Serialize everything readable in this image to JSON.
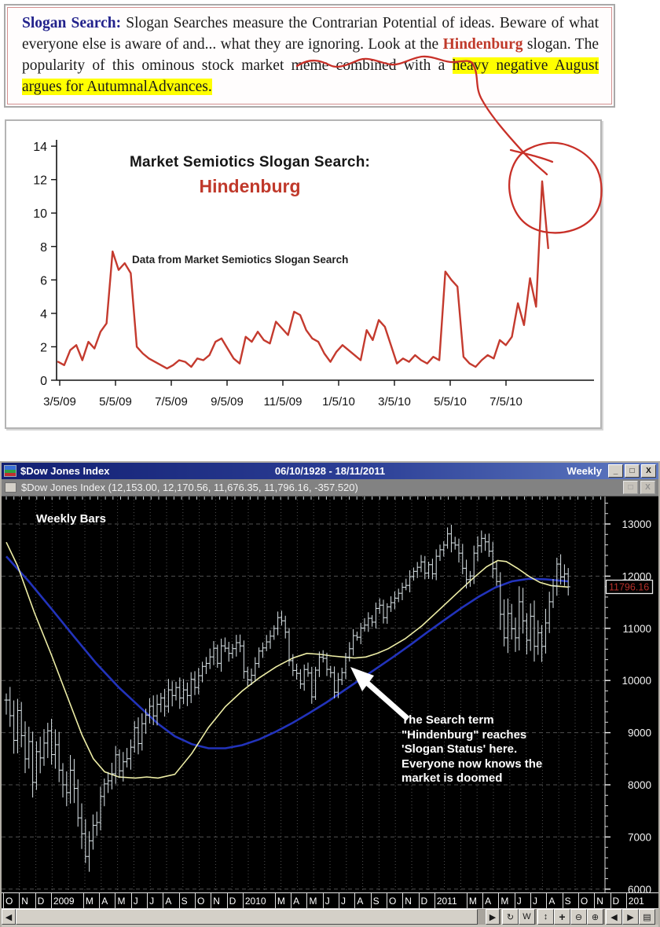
{
  "note_panel": {
    "segments": [
      {
        "text": "Slogan Search:",
        "style": "title"
      },
      {
        "text": " Slogan Searches measure the Contrarian Potential of ideas. Beware of what everyone else is aware of and... what they are ignoring. Look at the ",
        "style": "plain"
      },
      {
        "text": "Hindenburg",
        "style": "red"
      },
      {
        "text": " slogan. The popularity of this ominous stock market meme combined with a ",
        "style": "plain"
      },
      {
        "text": "heavy negative August argues for AutumnalAdvances.",
        "style": "highlight"
      }
    ]
  },
  "chart_data": [
    {
      "type": "line",
      "title": "Market Semiotics Slogan Search:",
      "subtitle": "Hindenburg",
      "note": "Data from Market Semiotics Slogan Search",
      "x_tick_labels": [
        "3/5/09",
        "5/5/09",
        "7/5/09",
        "9/5/09",
        "11/5/09",
        "1/5/10",
        "3/5/10",
        "5/5/10",
        "7/5/10"
      ],
      "y_ticks": [
        0,
        2,
        4,
        6,
        8,
        10,
        12,
        14
      ],
      "ylim": [
        0,
        14
      ],
      "grid": false,
      "line_color": "#c43a2e",
      "values": [
        1.1,
        0.9,
        1.8,
        2.1,
        1.2,
        2.3,
        1.9,
        2.9,
        3.4,
        7.7,
        6.6,
        7.0,
        6.4,
        2.0,
        1.6,
        1.3,
        1.1,
        0.9,
        0.7,
        0.9,
        1.2,
        1.1,
        0.8,
        1.3,
        1.2,
        1.5,
        2.3,
        2.5,
        1.9,
        1.3,
        1.0,
        2.6,
        2.3,
        2.9,
        2.4,
        2.2,
        3.5,
        3.1,
        2.7,
        4.1,
        3.9,
        3.0,
        2.5,
        2.3,
        1.6,
        1.1,
        1.7,
        2.1,
        1.8,
        1.5,
        1.2,
        3.0,
        2.4,
        3.6,
        3.2,
        2.1,
        1.0,
        1.3,
        1.1,
        1.5,
        1.2,
        1.0,
        1.4,
        1.2,
        6.5,
        6.0,
        5.6,
        1.4,
        1.0,
        0.8,
        1.2,
        1.5,
        1.3,
        2.4,
        2.1,
        2.6,
        4.6,
        3.3,
        6.1,
        4.4,
        11.9,
        7.9
      ],
      "annotation": "hand-drawn red circle around final spike linked by a red line to the highlighted text above"
    },
    {
      "type": "ohlc-bar",
      "symbol": "$Dow Jones Index",
      "period": "Weekly",
      "corner_label": "Weekly Bars",
      "y_ticks": [
        6000,
        7000,
        8000,
        9000,
        10000,
        11000,
        12000,
        13000
      ],
      "ylim": [
        5900,
        13500
      ],
      "last_price": "11796.16",
      "bar_color": "#dce6ea",
      "weekly_closes": [
        9625,
        9325,
        8852,
        9425,
        8943,
        8497,
        8829,
        8046,
        8635,
        8515,
        8800,
        9035,
        8579,
        8769,
        8281,
        8000,
        7850,
        8280,
        7932,
        7366,
        7062,
        6626,
        6927,
        7224,
        7278,
        7776,
        8017,
        8076,
        8212,
        8575,
        8268,
        8441,
        8500,
        8721,
        9093,
        8790,
        9172,
        9337,
        9506,
        9321,
        9544,
        9665,
        9506,
        9820,
        9712,
        9865,
        9665,
        9820,
        9712,
        10023,
        9865,
        10092,
        10270,
        10328,
        10452,
        10618,
        10329,
        10664,
        10619,
        10520,
        10610,
        10725,
        10663,
        10172,
        10012,
        10099,
        10325,
        10564,
        10624,
        10740,
        10850,
        10997,
        11205,
        11144,
        10927,
        10380,
        10193,
        10136,
        9932,
        10211,
        10143,
        9686,
        10198,
        10447,
        10424,
        10213,
        10150,
        9774,
        10015,
        10151,
        10448,
        10608,
        10860,
        10829,
        11006,
        11062,
        11192,
        11118,
        11382,
        11444,
        11204,
        11410,
        11492,
        11578,
        11672,
        11787,
        11823,
        11990,
        12092,
        12170,
        12273,
        12058,
        12220,
        12044,
        12381,
        12505,
        12595,
        12810,
        12638,
        12596,
        12441,
        12151,
        11934,
        12004,
        12441,
        12582,
        12724,
        12657,
        12479,
        12143,
        11897,
        11269,
        10818,
        11284,
        10992,
        10818,
        11509,
        11143,
        10772,
        11232,
        10655,
        10913,
        10655,
        11103,
        11509,
        11809,
        12231,
        11983,
        12042,
        11796
      ],
      "ma_fast": {
        "name": "moving-average-fast",
        "color": "#eeeea6",
        "points": [
          [
            0,
            12650
          ],
          [
            0.02,
            12200
          ],
          [
            0.05,
            11300
          ],
          [
            0.08,
            10500
          ],
          [
            0.11,
            9650
          ],
          [
            0.135,
            8950
          ],
          [
            0.155,
            8500
          ],
          [
            0.175,
            8250
          ],
          [
            0.2,
            8150
          ],
          [
            0.23,
            8130
          ],
          [
            0.25,
            8150
          ],
          [
            0.27,
            8130
          ],
          [
            0.3,
            8200
          ],
          [
            0.33,
            8600
          ],
          [
            0.36,
            9100
          ],
          [
            0.39,
            9500
          ],
          [
            0.42,
            9800
          ],
          [
            0.45,
            10050
          ],
          [
            0.48,
            10260
          ],
          [
            0.51,
            10430
          ],
          [
            0.535,
            10520
          ],
          [
            0.56,
            10500
          ],
          [
            0.58,
            10470
          ],
          [
            0.6,
            10450
          ],
          [
            0.62,
            10430
          ],
          [
            0.64,
            10450
          ],
          [
            0.66,
            10520
          ],
          [
            0.68,
            10610
          ],
          [
            0.71,
            10800
          ],
          [
            0.74,
            11050
          ],
          [
            0.77,
            11350
          ],
          [
            0.8,
            11650
          ],
          [
            0.83,
            11950
          ],
          [
            0.855,
            12180
          ],
          [
            0.875,
            12300
          ],
          [
            0.89,
            12280
          ],
          [
            0.91,
            12150
          ],
          [
            0.93,
            12000
          ],
          [
            0.95,
            11880
          ],
          [
            0.97,
            11820
          ],
          [
            1,
            11790
          ]
        ]
      },
      "ma_slow": {
        "name": "moving-average-slow",
        "color": "#2233bb",
        "points": [
          [
            0,
            12380
          ],
          [
            0.04,
            11900
          ],
          [
            0.08,
            11380
          ],
          [
            0.12,
            10850
          ],
          [
            0.16,
            10330
          ],
          [
            0.2,
            9870
          ],
          [
            0.24,
            9470
          ],
          [
            0.27,
            9170
          ],
          [
            0.3,
            8930
          ],
          [
            0.33,
            8780
          ],
          [
            0.36,
            8700
          ],
          [
            0.39,
            8700
          ],
          [
            0.42,
            8760
          ],
          [
            0.45,
            8870
          ],
          [
            0.48,
            9020
          ],
          [
            0.51,
            9190
          ],
          [
            0.54,
            9380
          ],
          [
            0.57,
            9580
          ],
          [
            0.6,
            9800
          ],
          [
            0.63,
            10020
          ],
          [
            0.66,
            10240
          ],
          [
            0.69,
            10460
          ],
          [
            0.72,
            10690
          ],
          [
            0.75,
            10930
          ],
          [
            0.78,
            11160
          ],
          [
            0.81,
            11390
          ],
          [
            0.84,
            11600
          ],
          [
            0.87,
            11780
          ],
          [
            0.9,
            11900
          ],
          [
            0.93,
            11950
          ],
          [
            0.96,
            11940
          ],
          [
            1,
            11900
          ]
        ]
      },
      "months": [
        "O",
        "N",
        "D",
        "2009",
        "M",
        "A",
        "M",
        "J",
        "J",
        "A",
        "S",
        "O",
        "N",
        "D",
        "2010",
        "M",
        "A",
        "M",
        "J",
        "J",
        "A",
        "S",
        "O",
        "N",
        "D",
        "2011",
        "M",
        "A",
        "M",
        "J",
        "J",
        "A",
        "S",
        "O",
        "N",
        "D",
        "201"
      ],
      "callout": {
        "lines": [
          "The Search term",
          "\"Hindenburg\" reaches",
          "'Slogan Status' here.",
          "Everyone now knows the",
          "market is doomed"
        ]
      }
    }
  ],
  "dow_window": {
    "title": "$Dow Jones Index",
    "date_range": "06/10/1928 - 18/11/2011",
    "period": "Weekly",
    "window_buttons": [
      "_",
      "□",
      "X"
    ],
    "inner_buttons": [
      "□",
      "X"
    ],
    "quote_line": "$Dow Jones Index (12,153.00, 12,170.56, 11,676.35, 11,796.16, -357.520)",
    "toolbar_icons": [
      {
        "name": "refresh-icon",
        "glyph": "↻"
      },
      {
        "name": "weekly-period-icon",
        "glyph": "W"
      },
      {
        "name": "vertical-scale-icon",
        "glyph": "↕"
      },
      {
        "name": "pan-icon",
        "glyph": "+"
      },
      {
        "name": "zoom-out-icon",
        "glyph": "⊖"
      },
      {
        "name": "zoom-in-icon",
        "glyph": "⊕"
      },
      {
        "name": "page-left-icon",
        "glyph": "◀"
      },
      {
        "name": "page-right-icon",
        "glyph": "▶"
      },
      {
        "name": "list-icon",
        "glyph": "▤"
      }
    ]
  }
}
